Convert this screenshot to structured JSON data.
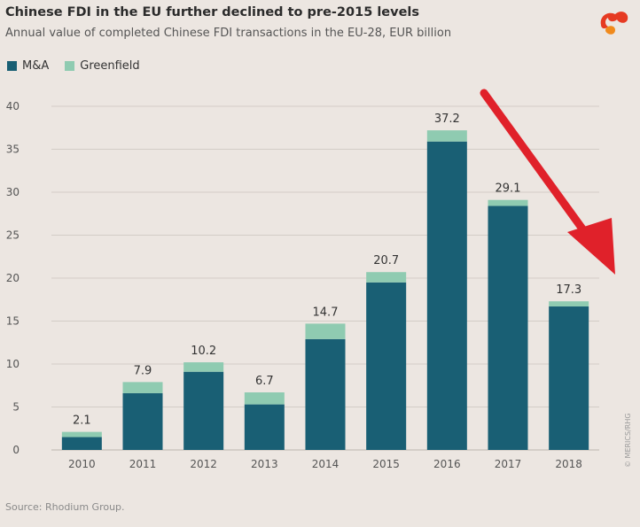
{
  "header": {
    "title": "Chinese FDI in the EU further declined to pre-2015 levels",
    "subtitle": "Annual value of completed Chinese FDI transactions in the EU-28, EUR billion"
  },
  "legend": {
    "items": [
      {
        "label": "M&A",
        "color": "#195f74"
      },
      {
        "label": "Greenfield",
        "color": "#8fcbb1"
      }
    ]
  },
  "footer": {
    "source": "Source: Rhodium Group.",
    "credit": "© MERICS/RHG"
  },
  "colors": {
    "ma": "#195f74",
    "greenfield": "#8fcbb1",
    "background": "#ece6e1",
    "arrow": "#e0212a",
    "logo_red": "#e63a22",
    "logo_orange": "#f08a1c"
  },
  "chart_data": {
    "type": "bar",
    "stacked": true,
    "categories": [
      "2010",
      "2011",
      "2012",
      "2013",
      "2014",
      "2015",
      "2016",
      "2017",
      "2018"
    ],
    "series": [
      {
        "name": "M&A",
        "values": [
          1.5,
          6.6,
          9.1,
          5.3,
          12.9,
          19.5,
          35.9,
          28.4,
          16.7
        ]
      },
      {
        "name": "Greenfield",
        "values": [
          0.6,
          1.3,
          1.1,
          1.4,
          1.8,
          1.2,
          1.3,
          0.7,
          0.6
        ]
      }
    ],
    "totals": [
      "2.1",
      "7.9",
      "10.2",
      "6.7",
      "14.7",
      "20.7",
      "37.2",
      "29.1",
      "17.3"
    ],
    "ylim": [
      0,
      40
    ],
    "yticks": [
      "0",
      "5",
      "10",
      "15",
      "20",
      "25",
      "30",
      "35",
      "40"
    ],
    "grid": true,
    "legend_position": "top-left",
    "annotation": "red downward arrow"
  }
}
